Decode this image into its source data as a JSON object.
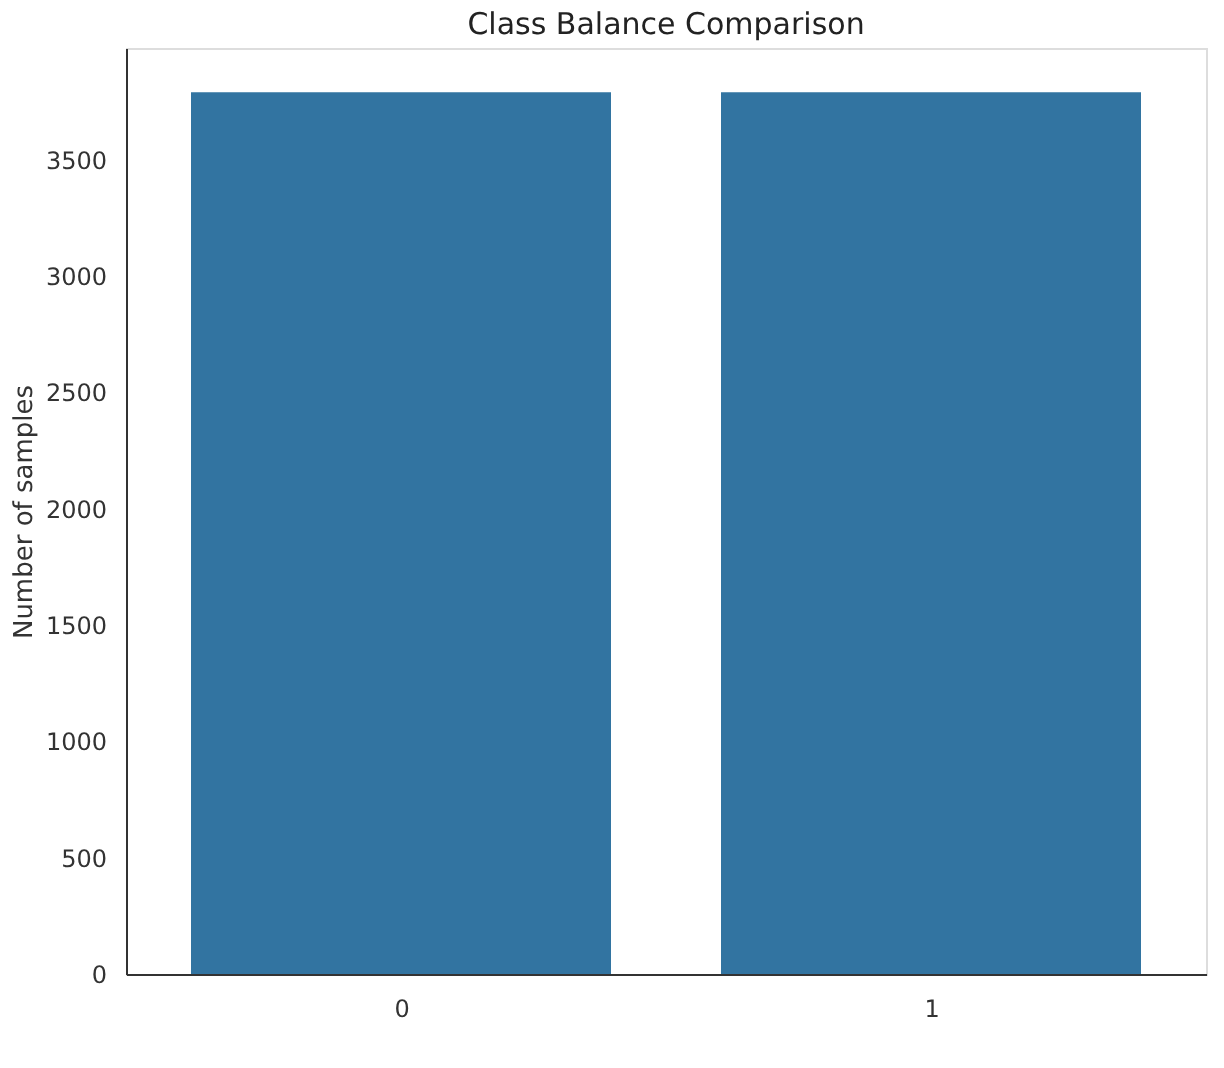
{
  "chart_data": {
    "type": "bar",
    "title": "Class Balance Comparison",
    "ylabel": "Number of samples",
    "categories": [
      "0",
      "1"
    ],
    "values": [
      3790,
      3790
    ],
    "color": "#3274a1",
    "ylim": [
      0,
      3980
    ],
    "yticks": [
      0,
      500,
      1000,
      1500,
      2000,
      2500,
      3000,
      3500
    ],
    "grid": false
  }
}
